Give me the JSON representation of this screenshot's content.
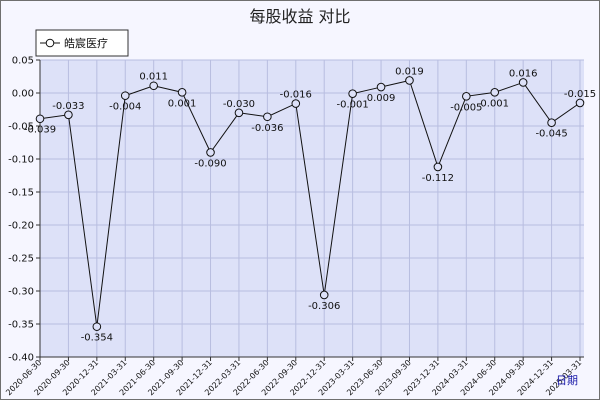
{
  "chart_data": {
    "type": "line",
    "title": "每股收益 对比",
    "legend": {
      "placement": "top-left",
      "entries": [
        "皓宸医疗"
      ]
    },
    "corner_label": "日期",
    "ylim": [
      -0.4,
      0.05
    ],
    "yticks": [
      "0.05",
      "0.00",
      "-0.05",
      "-0.10",
      "-0.15",
      "-0.20",
      "-0.25",
      "-0.30",
      "-0.35",
      "-0.40"
    ],
    "grid": true,
    "x": [
      "2020-06-30",
      "2020-09-30",
      "2020-12-31",
      "2021-03-31",
      "2021-06-30",
      "2021-09-30",
      "2021-12-31",
      "2022-03-31",
      "2022-06-30",
      "2022-09-30",
      "2022-12-31",
      "2023-03-31",
      "2023-06-30",
      "2023-09-30",
      "2023-12-31",
      "2024-03-31",
      "2024-06-30",
      "2024-09-30",
      "2024-12-31",
      "2025-03-31"
    ],
    "series": [
      {
        "name": "皓宸医疗",
        "values": [
          -0.039,
          -0.033,
          -0.354,
          -0.004,
          0.011,
          0.001,
          -0.09,
          -0.03,
          -0.036,
          -0.016,
          -0.306,
          -0.001,
          0.009,
          0.019,
          -0.112,
          -0.005,
          0.001,
          0.016,
          -0.045,
          -0.015
        ],
        "labels": [
          "-0.039",
          "-0.033",
          "-0.354",
          "-0.004",
          "0.011",
          "0.001",
          "-0.090",
          "-0.030",
          "-0.036",
          "-0.016",
          "-0.306",
          "-0.001",
          "0.009",
          "0.019",
          "-0.112",
          "-0.005",
          "0.001",
          "0.016",
          "-0.045",
          "-0.015"
        ]
      }
    ]
  }
}
